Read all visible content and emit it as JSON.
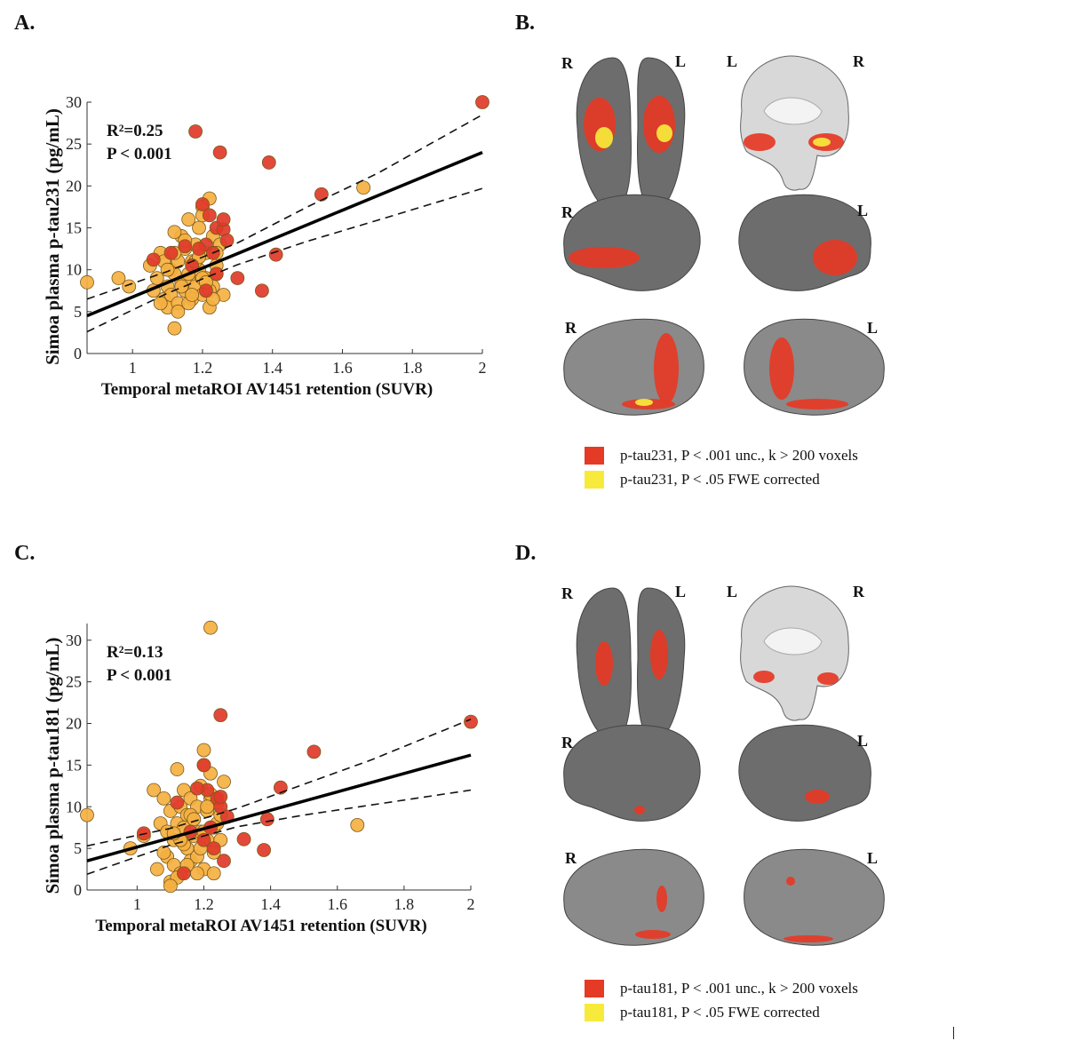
{
  "panels": {
    "A": {
      "label": "A."
    },
    "B": {
      "label": "B."
    },
    "C": {
      "label": "C."
    },
    "D": {
      "label": "D."
    }
  },
  "colors": {
    "red": "#e53a25",
    "yellow": "#f7ea3b",
    "orange_point": "#f5b041",
    "red_point": "#e03a2a",
    "brain_gray": "#6b6b6b"
  },
  "brain_views": {
    "B": {
      "top_left": "R",
      "top_right": "L",
      "coronal_left": "L",
      "coronal_right": "R",
      "lat_right": "R",
      "lat_left": "L",
      "med_right": "R",
      "med_left": "L"
    },
    "D": {
      "top_left": "R",
      "top_right": "L",
      "coronal_left": "L",
      "coronal_right": "R",
      "lat_right": "R",
      "lat_left": "L",
      "med_right": "R",
      "med_left": "L"
    }
  },
  "legends": {
    "B": [
      {
        "color": "#e53a25",
        "text": "p-tau231, P < .001 unc., k > 200 voxels"
      },
      {
        "color": "#f7ea3b",
        "text": "p-tau231, P < .05 FWE corrected"
      }
    ],
    "D": [
      {
        "color": "#e53a25",
        "text": "p-tau181, P < .001 unc., k > 200 voxels"
      },
      {
        "color": "#f7ea3b",
        "text": "p-tau181, P < .05 FWE corrected"
      }
    ]
  },
  "chart_data": [
    {
      "type": "scatter",
      "panel": "A",
      "xlabel": "Temporal metaROI AV1451 retention (SUVR)",
      "ylabel": "Simoa plasma  p-tau231 (pg/mL)",
      "xlim": [
        0.87,
        2.0
      ],
      "ylim": [
        0,
        30
      ],
      "xticks": [
        1,
        1.2,
        1.4,
        1.6,
        1.8,
        2
      ],
      "xtick_labels": [
        "1",
        "1.2",
        "1.4",
        "1.6",
        "1.8",
        "2"
      ],
      "yticks": [
        0,
        5,
        10,
        15,
        20,
        25,
        30
      ],
      "ytick_labels": [
        "0",
        "5",
        "10",
        "15",
        "20",
        "25",
        "30"
      ],
      "annotation": {
        "r2": "R²=0.25",
        "p": "P < 0.001"
      },
      "fit": {
        "x": [
          0.87,
          2.0
        ],
        "y": [
          4.5,
          24.0
        ]
      },
      "ci_upper": {
        "x": [
          0.87,
          1.1,
          1.3,
          1.5,
          1.7,
          2.0
        ],
        "y": [
          6.5,
          9.8,
          13.2,
          17.5,
          21.5,
          28.5
        ]
      },
      "ci_lower": {
        "x": [
          0.87,
          1.1,
          1.3,
          1.5,
          1.7,
          2.0
        ],
        "y": [
          2.6,
          7.2,
          10.6,
          13.4,
          15.9,
          19.7
        ]
      },
      "series": [
        {
          "name": "orange",
          "color": "#f5b041",
          "x": [
            0.87,
            0.96,
            0.99,
            1.05,
            1.06,
            1.07,
            1.08,
            1.09,
            1.09,
            1.1,
            1.1,
            1.11,
            1.11,
            1.12,
            1.12,
            1.13,
            1.13,
            1.14,
            1.14,
            1.15,
            1.15,
            1.16,
            1.16,
            1.17,
            1.17,
            1.18,
            1.18,
            1.19,
            1.19,
            1.2,
            1.2,
            1.21,
            1.21,
            1.22,
            1.22,
            1.23,
            1.23,
            1.24,
            1.24,
            1.25,
            1.26,
            1.12,
            1.14,
            1.16,
            1.18,
            1.2,
            1.22,
            1.1,
            1.13,
            1.15,
            1.17,
            1.19,
            1.21,
            1.23,
            1.66,
            1.12,
            1.16,
            1.2,
            1.24,
            1.08
          ],
          "y": [
            8.5,
            9,
            8,
            10.5,
            7.5,
            9,
            12,
            11,
            6.5,
            8,
            5.5,
            7,
            10,
            3,
            9.5,
            6,
            11,
            8.5,
            14,
            7.5,
            12.5,
            9,
            16,
            6.5,
            11,
            8,
            13,
            10,
            15,
            7,
            17.5,
            9,
            12,
            5.5,
            18.5,
            8,
            14,
            10.5,
            9.5,
            13,
            7,
            12,
            8,
            6,
            11,
            9,
            7.5,
            10,
            5,
            13.5,
            7,
            11.5,
            8.5,
            6.5,
            19.8,
            14.5,
            9.5,
            16.5,
            12,
            6
          ]
        },
        {
          "name": "red",
          "color": "#e03a2a",
          "x": [
            1.18,
            1.25,
            1.39,
            1.54,
            2.0,
            1.2,
            1.24,
            1.26,
            1.27,
            1.21,
            1.15,
            1.19,
            1.23,
            1.26,
            1.22,
            1.3,
            1.37,
            1.41,
            1.21,
            1.06,
            1.17,
            1.24,
            1.11
          ],
          "y": [
            26.5,
            24,
            22.8,
            19,
            30,
            17.8,
            15,
            14.8,
            13.5,
            13,
            12.8,
            12.5,
            12,
            16,
            16.5,
            9,
            7.5,
            11.8,
            7.5,
            11.2,
            10.5,
            9.5,
            12
          ]
        }
      ]
    },
    {
      "type": "scatter",
      "panel": "C",
      "xlabel": "Temporal metaROI AV1451 retention (SUVR)",
      "ylabel": "Simoa plasma  p-tau181 (pg/mL)",
      "xlim": [
        0.85,
        2.0
      ],
      "ylim": [
        0,
        32
      ],
      "xticks": [
        1,
        1.2,
        1.4,
        1.6,
        1.8,
        2
      ],
      "xtick_labels": [
        "1",
        "1.2",
        "1.4",
        "1.6",
        "1.8",
        "2"
      ],
      "yticks": [
        0,
        5,
        10,
        15,
        20,
        25,
        30
      ],
      "ytick_labels": [
        "0",
        "5",
        "10",
        "15",
        "20",
        "25",
        "30"
      ],
      "annotation": {
        "r2": "R²=0.13",
        "p": "P < 0.001"
      },
      "fit": {
        "x": [
          0.85,
          2.0
        ],
        "y": [
          3.5,
          16.2
        ]
      },
      "ci_upper": {
        "x": [
          0.85,
          1.1,
          1.3,
          1.5,
          1.7,
          2.0
        ],
        "y": [
          5.3,
          7.4,
          9.8,
          12.7,
          15.6,
          20.5
        ]
      },
      "ci_lower": {
        "x": [
          0.85,
          1.1,
          1.3,
          1.5,
          1.7,
          2.0
        ],
        "y": [
          1.9,
          5.4,
          7.6,
          9.0,
          10.2,
          12.0
        ]
      },
      "series": [
        {
          "name": "orange",
          "color": "#f5b041",
          "x": [
            0.85,
            0.98,
            1.02,
            1.05,
            1.06,
            1.07,
            1.08,
            1.09,
            1.09,
            1.1,
            1.1,
            1.11,
            1.11,
            1.12,
            1.12,
            1.13,
            1.13,
            1.14,
            1.14,
            1.15,
            1.15,
            1.16,
            1.16,
            1.17,
            1.17,
            1.18,
            1.18,
            1.19,
            1.19,
            1.2,
            1.2,
            1.21,
            1.21,
            1.22,
            1.22,
            1.23,
            1.23,
            1.24,
            1.24,
            1.25,
            1.26,
            1.12,
            1.14,
            1.16,
            1.18,
            1.2,
            1.22,
            1.1,
            1.13,
            1.15,
            1.17,
            1.19,
            1.21,
            1.23,
            1.66,
            1.22,
            1.2,
            1.11,
            1.25,
            1.08
          ],
          "y": [
            9,
            5,
            6.5,
            12,
            2.5,
            8,
            11,
            4,
            7,
            1,
            9.5,
            6,
            3,
            14.5,
            8,
            10,
            2,
            7.5,
            12,
            5,
            9,
            3.5,
            11,
            6.5,
            8.5,
            4,
            10,
            7,
            12.5,
            2.5,
            16.8,
            6,
            9.5,
            31.5,
            11,
            7.5,
            4.5,
            10.5,
            8,
            6,
            13,
            1.5,
            5.5,
            9,
            2,
            7,
            11.5,
            0.5,
            6,
            3,
            8.5,
            5,
            10,
            2,
            7.8,
            14,
            15,
            6.8,
            9,
            4.5
          ]
        },
        {
          "name": "red",
          "color": "#e03a2a",
          "x": [
            1.25,
            1.53,
            2.0,
            1.2,
            1.39,
            1.43,
            1.38,
            1.32,
            1.24,
            1.21,
            1.25,
            1.18,
            1.27,
            1.22,
            1.2,
            1.12,
            1.16,
            1.23,
            1.26,
            1.02,
            1.14,
            1.25
          ],
          "y": [
            21,
            16.6,
            20.2,
            15,
            8.5,
            12.3,
            4.8,
            6.1,
            11,
            12,
            10,
            12.2,
            8.8,
            7.5,
            6,
            10.5,
            7,
            5,
            3.5,
            6.8,
            2,
            11.2
          ]
        }
      ]
    }
  ]
}
